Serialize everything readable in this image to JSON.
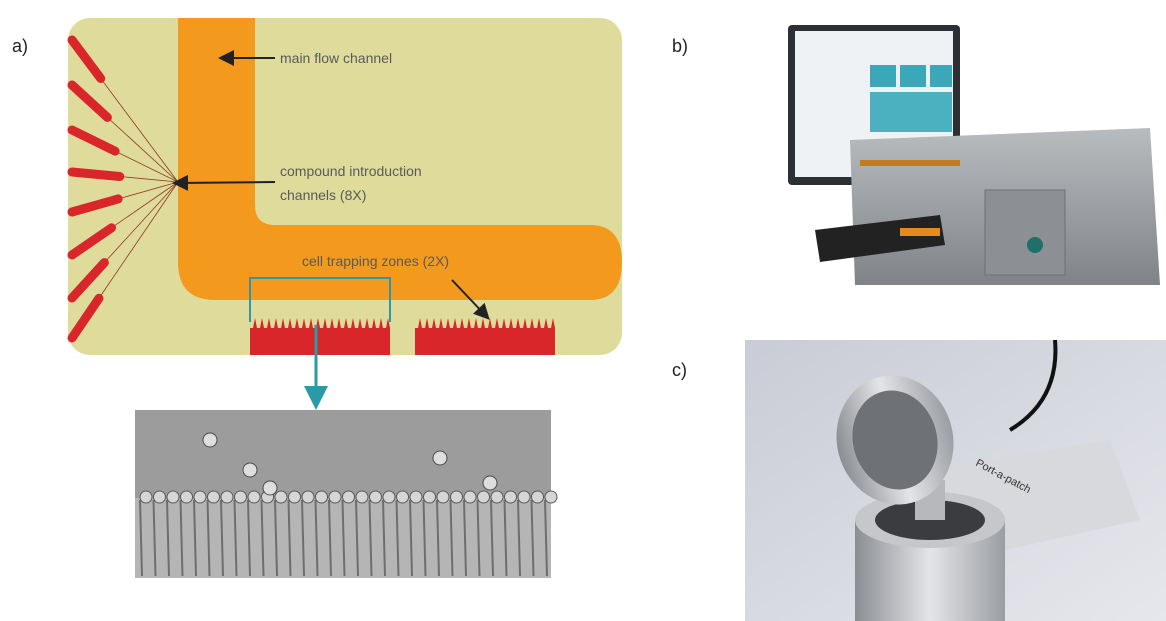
{
  "panels": {
    "a": {
      "label": "a)",
      "annotations": {
        "main_flow": "main flow channel",
        "compound_line1": "compound introduction",
        "compound_line2": "channels (8X)",
        "trapping": "cell trapping zones (2X)"
      }
    },
    "b": {
      "label": "b)"
    },
    "c": {
      "label": "c)",
      "device_text": "Port-a-patch"
    }
  }
}
